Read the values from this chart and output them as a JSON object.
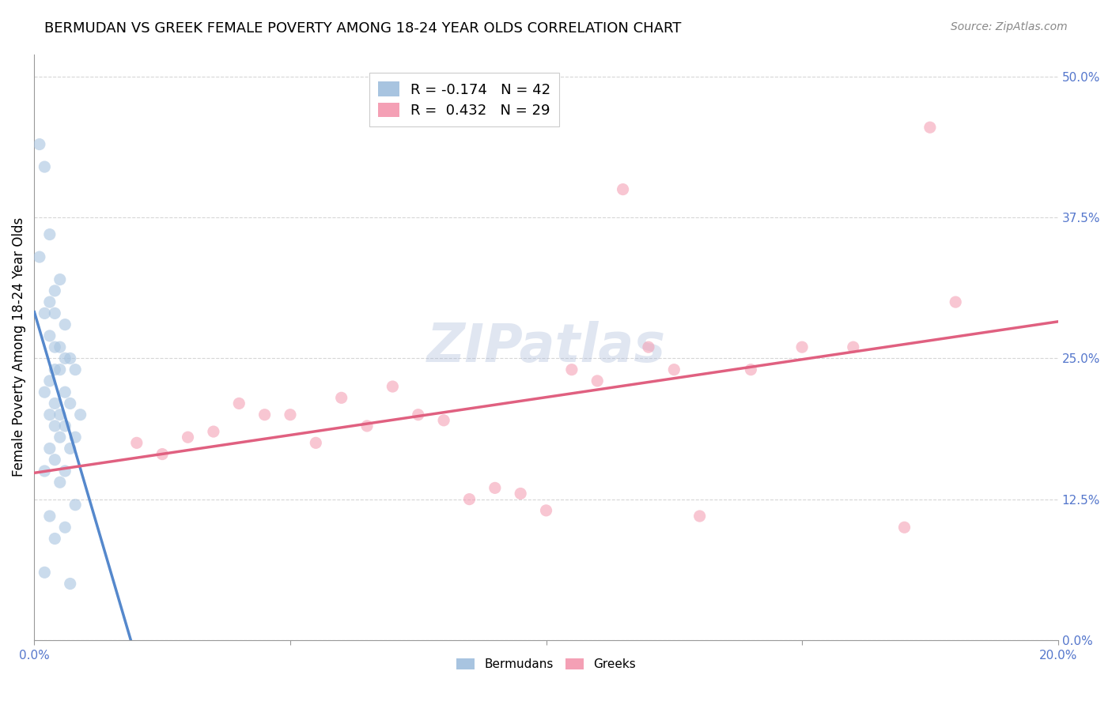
{
  "title": "BERMUDAN VS GREEK FEMALE POVERTY AMONG 18-24 YEAR OLDS CORRELATION CHART",
  "source": "Source: ZipAtlas.com",
  "ylabel": "Female Poverty Among 18-24 Year Olds",
  "xlabel": "",
  "bermudan_color": "#a8c4e0",
  "greek_color": "#f4a0b5",
  "trendline_bermudan_color": "#5588cc",
  "trendline_greek_color": "#e06080",
  "trendline_bermudan_dash": "solid",
  "trendline_greek_dash": "solid",
  "watermark": "ZIPatlas",
  "legend_R_bermudan": "-0.174",
  "legend_N_bermudan": "42",
  "legend_R_greek": "0.432",
  "legend_N_greek": "29",
  "xmin": 0.0,
  "xmax": 0.2,
  "ymin": 0.0,
  "ymax": 0.52,
  "yticks": [
    0.0,
    0.125,
    0.25,
    0.375,
    0.5
  ],
  "ytick_labels": [
    "0.0%",
    "12.5%",
    "25.0%",
    "37.5%",
    "50.0%"
  ],
  "xticks": [
    0.0,
    0.05,
    0.1,
    0.15,
    0.2
  ],
  "xtick_labels": [
    "0.0%",
    "",
    "",
    "",
    "20.0%"
  ],
  "bermudan_x": [
    0.001,
    0.002,
    0.001,
    0.003,
    0.005,
    0.004,
    0.003,
    0.002,
    0.004,
    0.006,
    0.003,
    0.005,
    0.004,
    0.007,
    0.006,
    0.005,
    0.004,
    0.008,
    0.003,
    0.006,
    0.002,
    0.004,
    0.007,
    0.005,
    0.003,
    0.009,
    0.006,
    0.004,
    0.008,
    0.005,
    0.003,
    0.007,
    0.004,
    0.006,
    0.002,
    0.005,
    0.008,
    0.003,
    0.006,
    0.004,
    0.002,
    0.007
  ],
  "bermudan_y": [
    0.44,
    0.42,
    0.34,
    0.36,
    0.32,
    0.31,
    0.3,
    0.29,
    0.29,
    0.28,
    0.27,
    0.26,
    0.26,
    0.25,
    0.25,
    0.24,
    0.24,
    0.24,
    0.23,
    0.22,
    0.22,
    0.21,
    0.21,
    0.2,
    0.2,
    0.2,
    0.19,
    0.19,
    0.18,
    0.18,
    0.17,
    0.17,
    0.16,
    0.15,
    0.15,
    0.14,
    0.12,
    0.11,
    0.1,
    0.09,
    0.06,
    0.05
  ],
  "greek_x": [
    0.02,
    0.025,
    0.03,
    0.035,
    0.04,
    0.045,
    0.05,
    0.055,
    0.06,
    0.065,
    0.07,
    0.075,
    0.08,
    0.085,
    0.09,
    0.095,
    0.1,
    0.105,
    0.11,
    0.115,
    0.12,
    0.125,
    0.13,
    0.14,
    0.15,
    0.16,
    0.17,
    0.175,
    0.18
  ],
  "greek_y": [
    0.175,
    0.165,
    0.18,
    0.185,
    0.21,
    0.2,
    0.2,
    0.175,
    0.215,
    0.19,
    0.225,
    0.2,
    0.195,
    0.125,
    0.135,
    0.13,
    0.115,
    0.24,
    0.23,
    0.4,
    0.26,
    0.24,
    0.11,
    0.24,
    0.26,
    0.26,
    0.1,
    0.455,
    0.3
  ],
  "title_fontsize": 13,
  "axis_label_fontsize": 12,
  "tick_fontsize": 11,
  "legend_fontsize": 13,
  "source_fontsize": 10,
  "watermark_fontsize": 48,
  "marker_size": 120,
  "marker_alpha": 0.6,
  "axis_color": "#5577cc"
}
